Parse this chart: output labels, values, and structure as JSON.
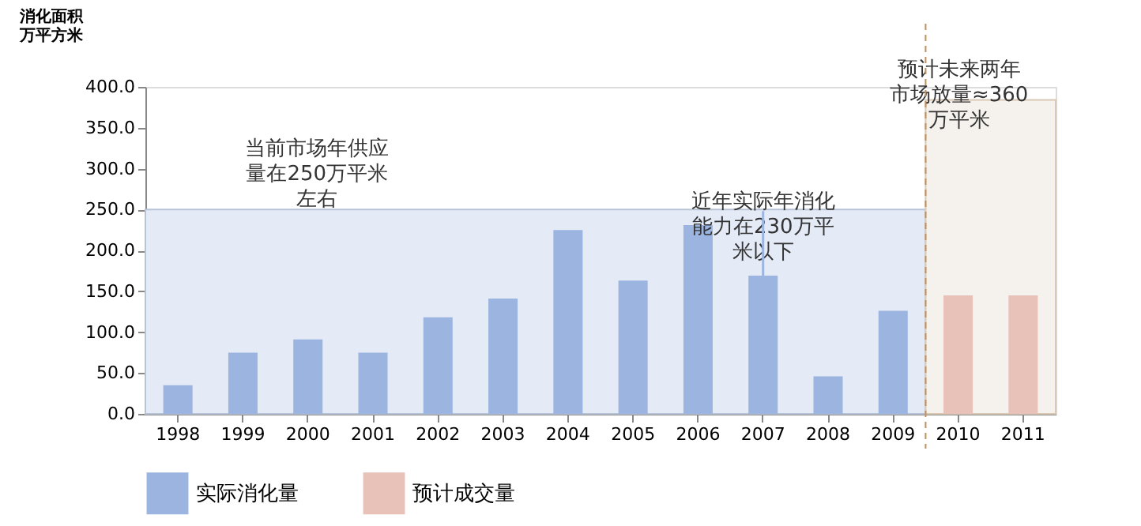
{
  "chart_data": {
    "type": "bar",
    "ylabel": "消化面积万平方米",
    "categories": [
      "1998",
      "1999",
      "2000",
      "2001",
      "2002",
      "2003",
      "2004",
      "2005",
      "2006",
      "2007",
      "2008",
      "2009",
      "2010",
      "2011"
    ],
    "series": [
      {
        "name": "实际消化量",
        "color": "#9bb5e0",
        "values": [
          35,
          75,
          91,
          75,
          118,
          141,
          225,
          163,
          231,
          169,
          46,
          126,
          null,
          null
        ]
      },
      {
        "name": "预计成交量",
        "color": "#e8c1b9",
        "values": [
          null,
          null,
          null,
          null,
          null,
          null,
          null,
          null,
          null,
          null,
          null,
          null,
          145,
          145
        ]
      }
    ],
    "ylim": [
      0,
      400
    ],
    "yticks": [
      {
        "value": 0,
        "label": "0.0"
      },
      {
        "value": 50,
        "label": "50.0"
      },
      {
        "value": 100,
        "label": "100.0"
      },
      {
        "value": 150,
        "label": "150.0"
      },
      {
        "value": 200,
        "label": "200.0"
      },
      {
        "value": 250,
        "label": "250.0"
      },
      {
        "value": 300,
        "label": "300.0"
      },
      {
        "value": 350,
        "label": "350.0"
      },
      {
        "value": 400,
        "label": "400.0"
      }
    ],
    "bands": [
      {
        "axis": "y",
        "from": 0,
        "to": 250,
        "color": "#e4ebf7",
        "label": "当前市场年供应量在250万平米左右"
      },
      {
        "axis": "x",
        "from": "2010",
        "to": "2011",
        "color": "#f5f1ec",
        "label": "预计未来两年市场放量≈360万平米"
      }
    ],
    "ref_lines": [
      {
        "axis": "x",
        "value": "2010",
        "color": "#c09060",
        "line_style": "dashed"
      }
    ],
    "annotations": [
      {
        "text": "近年实际年消化能力在230万平米以下",
        "x": "2007",
        "y": 169
      }
    ],
    "grid": false,
    "legend": "bottom"
  }
}
